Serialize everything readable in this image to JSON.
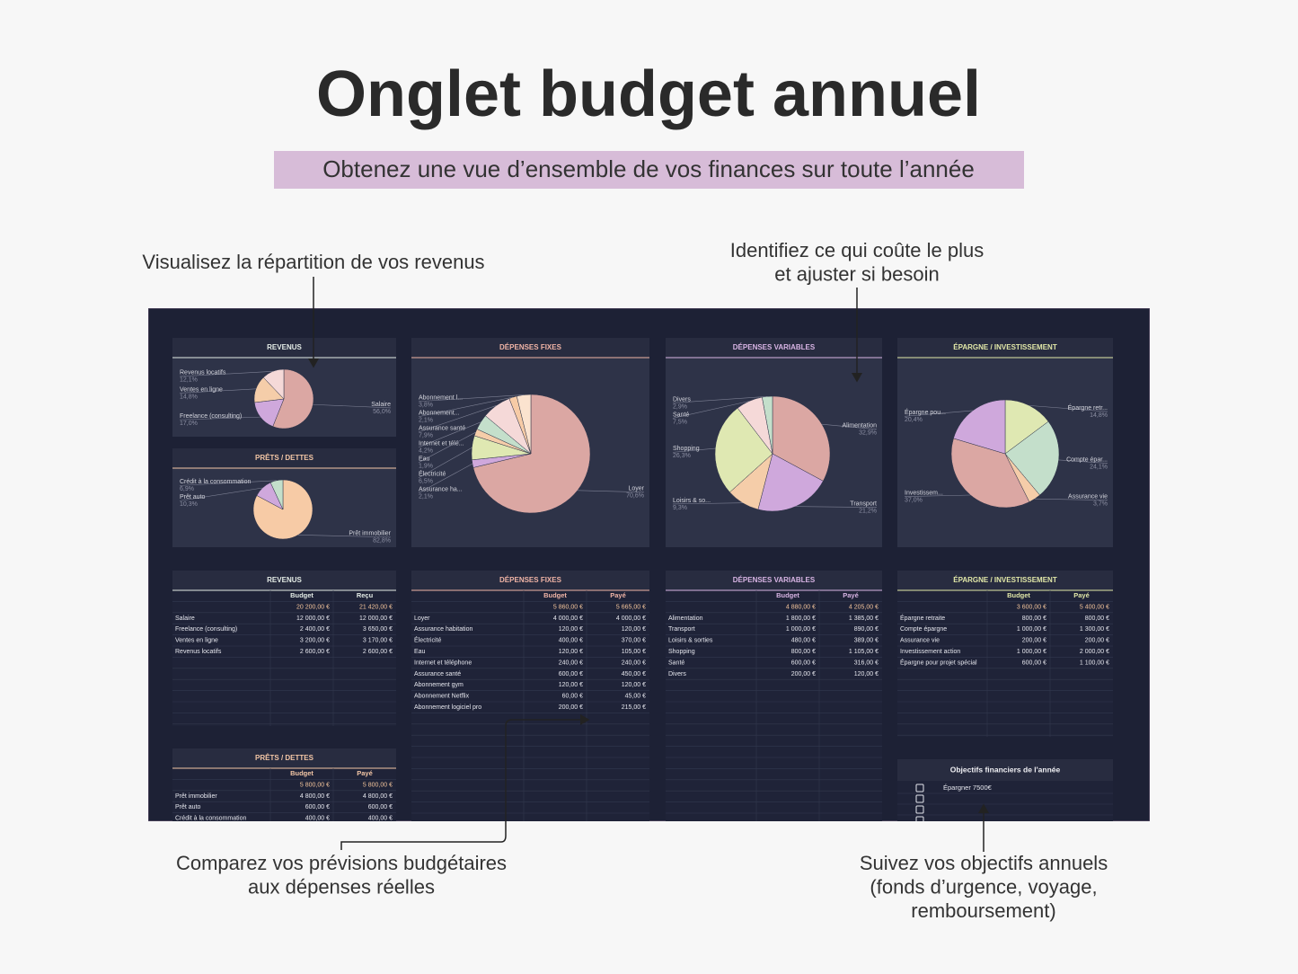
{
  "header": {
    "title": "Onglet budget annuel",
    "subtitle": "Obtenez une vue d’ensemble de vos finances sur toute l’année"
  },
  "callouts": [
    {
      "lines": [
        "Visualisez la répartition de vos revenus"
      ]
    },
    {
      "lines": [
        "Identifiez ce qui coûte le plus",
        "et ajuster si besoin"
      ]
    },
    {
      "lines": [
        "Comparez vos prévisions budgétaires",
        "aux dépenses réelles"
      ]
    },
    {
      "lines": [
        "Suivez vos objectifs annuels",
        "(fonds d’urgence, voyage,",
        "remboursement)"
      ]
    }
  ],
  "pies": [
    {
      "title": "REVENUS",
      "slices": [
        {
          "label": "Salaire",
          "value": 56.0,
          "value_label": "56,0%",
          "color": "#dba7a3"
        },
        {
          "label": "Freelance (consulting)",
          "value": 17.0,
          "value_label": "17,0%",
          "color": "#cfa8dc"
        },
        {
          "label": "Ventes en ligne",
          "value": 14.8,
          "value_label": "14,8%",
          "color": "#f5cda9"
        },
        {
          "label": "Revenus locatifs",
          "value": 12.1,
          "value_label": "12,1%",
          "color": "#f5d9d8"
        }
      ]
    },
    {
      "title": "PRÊTS / DETTES",
      "slices": [
        {
          "label": "Prêt immobilier",
          "value": 82.8,
          "value_label": "82,8%",
          "color": "#f7cba6"
        },
        {
          "label": "Prêt auto",
          "value": 10.3,
          "value_label": "10,3%",
          "color": "#cfa8dc"
        },
        {
          "label": "Crédit à la consommation",
          "value": 6.9,
          "value_label": "6,9%",
          "color": "#c4dfcb"
        }
      ]
    },
    {
      "title": "DÉPENSES FIXES",
      "slices": [
        {
          "label": "Loyer",
          "value": 70.6,
          "value_label": "70,6%",
          "color": "#dba7a3"
        },
        {
          "label": "Assurance ha...",
          "value": 2.1,
          "value_label": "2,1%",
          "color": "#cfa8dc"
        },
        {
          "label": "Électricité",
          "value": 6.5,
          "value_label": "6,5%",
          "color": "#dfe8b2"
        },
        {
          "label": "Eau",
          "value": 1.9,
          "value_label": "1,9%",
          "color": "#f5cda9"
        },
        {
          "label": "Internet et télé...",
          "value": 4.2,
          "value_label": "4,2%",
          "color": "#c4dfcb"
        },
        {
          "label": "Assurance santé",
          "value": 7.9,
          "value_label": "7,9%",
          "color": "#f5d9d8"
        },
        {
          "label": "Abonnement...",
          "value": 2.1,
          "value_label": "2,1%",
          "color": "#f7cba6"
        },
        {
          "label": "Abonnement l...",
          "value": 3.8,
          "value_label": "3,8%",
          "color": "#fbe3cf"
        }
      ]
    },
    {
      "title": "DÉPENSES VARIABLES",
      "slices": [
        {
          "label": "Alimentation",
          "value": 32.9,
          "value_label": "32,9%",
          "color": "#dba7a3"
        },
        {
          "label": "Transport",
          "value": 21.2,
          "value_label": "21,2%",
          "color": "#cfa8dc"
        },
        {
          "label": "Loisirs & so...",
          "value": 9.3,
          "value_label": "9,3%",
          "color": "#f5cda9"
        },
        {
          "label": "Shopping",
          "value": 26.3,
          "value_label": "26,3%",
          "color": "#dfe8b2"
        },
        {
          "label": "Santé",
          "value": 7.5,
          "value_label": "7,5%",
          "color": "#f5d9d8"
        },
        {
          "label": "Divers",
          "value": 2.9,
          "value_label": "2,9%",
          "color": "#c4dfcb"
        }
      ]
    },
    {
      "title": "ÉPARGNE / INVESTISSEMENT",
      "slices": [
        {
          "label": "Épargne retr...",
          "value": 14.8,
          "value_label": "14,8%",
          "color": "#dfe8b2"
        },
        {
          "label": "Compte épar...",
          "value": 24.1,
          "value_label": "24,1%",
          "color": "#c4dfcb"
        },
        {
          "label": "Assurance vie",
          "value": 3.7,
          "value_label": "3,7%",
          "color": "#f5cda9"
        },
        {
          "label": "Investissem...",
          "value": 37.0,
          "value_label": "37,0%",
          "color": "#dba7a3"
        },
        {
          "label": "Épargne pou...",
          "value": 20.4,
          "value_label": "20,4%",
          "color": "#cfa8dc"
        }
      ]
    }
  ],
  "tables": [
    {
      "title": "REVENUS",
      "columns": [
        "Budget",
        "Reçu"
      ],
      "totals": [
        "20 200,00 €",
        "21 420,00 €"
      ],
      "rows": [
        [
          "Salaire",
          "12 000,00 €",
          "12 000,00 €"
        ],
        [
          "Freelance (consulting)",
          "2 400,00 €",
          "3 650,00 €"
        ],
        [
          "Ventes en ligne",
          "3 200,00 €",
          "3 170,00 €"
        ],
        [
          "Revenus locatifs",
          "2 600,00 €",
          "2 600,00 €"
        ]
      ]
    },
    {
      "title": "DÉPENSES FIXES",
      "columns": [
        "Budget",
        "Payé"
      ],
      "totals": [
        "5 860,00 €",
        "5 665,00 €"
      ],
      "rows": [
        [
          "Loyer",
          "4 000,00 €",
          "4 000,00 €"
        ],
        [
          "Assurance habitation",
          "120,00 €",
          "120,00 €"
        ],
        [
          "Électricité",
          "400,00 €",
          "370,00 €"
        ],
        [
          "Eau",
          "120,00 €",
          "105,00 €"
        ],
        [
          "Internet et téléphone",
          "240,00 €",
          "240,00 €"
        ],
        [
          "Assurance santé",
          "600,00 €",
          "450,00 €"
        ],
        [
          "Abonnement gym",
          "120,00 €",
          "120,00 €"
        ],
        [
          "Abonnement Netflix",
          "60,00 €",
          "45,00 €"
        ],
        [
          "Abonnement logiciel pro",
          "200,00 €",
          "215,00 €"
        ]
      ]
    },
    {
      "title": "DÉPENSES VARIABLES",
      "columns": [
        "Budget",
        "Payé"
      ],
      "totals": [
        "4 880,00 €",
        "4 205,00 €"
      ],
      "rows": [
        [
          "Alimentation",
          "1 800,00 €",
          "1 385,00 €"
        ],
        [
          "Transport",
          "1 000,00 €",
          "890,00 €"
        ],
        [
          "Loisirs & sorties",
          "480,00 €",
          "389,00 €"
        ],
        [
          "Shopping",
          "800,00 €",
          "1 105,00 €"
        ],
        [
          "Santé",
          "600,00 €",
          "316,00 €"
        ],
        [
          "Divers",
          "200,00 €",
          "120,00 €"
        ]
      ]
    },
    {
      "title": "ÉPARGNE / INVESTISSEMENT",
      "columns": [
        "Budget",
        "Payé"
      ],
      "totals": [
        "3 600,00 €",
        "5 400,00 €"
      ],
      "rows": [
        [
          "Épargne retraite",
          "800,00 €",
          "800,00 €"
        ],
        [
          "Compte épargne",
          "1 000,00 €",
          "1 300,00 €"
        ],
        [
          "Assurance vie",
          "200,00 €",
          "200,00 €"
        ],
        [
          "Investissement action",
          "1 000,00 €",
          "2 000,00 €"
        ],
        [
          "Épargne pour projet spécial",
          "600,00 €",
          "1 100,00 €"
        ]
      ]
    },
    {
      "title": "PRÊTS / DETTES",
      "columns": [
        "Budget",
        "Payé"
      ],
      "totals": [
        "5 800,00 €",
        "5 800,00 €"
      ],
      "rows": [
        [
          "Prêt immobilier",
          "4 800,00 €",
          "4 800,00 €"
        ],
        [
          "Prêt auto",
          "600,00 €",
          "600,00 €"
        ],
        [
          "Crédit à la consommation",
          "400,00 €",
          "400,00 €"
        ]
      ]
    }
  ],
  "objectives": {
    "title": "Objectifs financiers de l'année",
    "items": [
      "Épargner 7500€"
    ]
  }
}
